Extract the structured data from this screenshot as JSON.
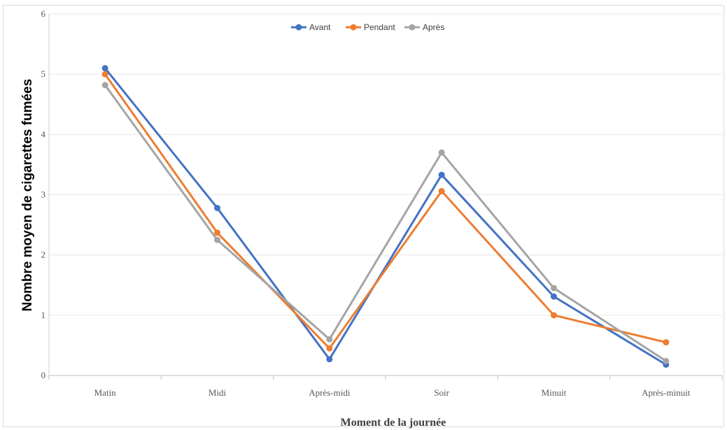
{
  "chart_data": {
    "type": "line",
    "title": "",
    "xlabel": "Moment de la journée",
    "ylabel": "Nombre moyen de cigarettes fumées",
    "categories": [
      "Matin",
      "Midi",
      "Après-midi",
      "Soir",
      "Minuit",
      "Après-minuit"
    ],
    "ylim": [
      0,
      6
    ],
    "yticks": [
      "0",
      "1",
      "2",
      "3",
      "4",
      "5",
      "6"
    ],
    "grid": true,
    "legend_position": "top-center",
    "series": [
      {
        "name": "Avant",
        "color": "#4472C4",
        "values": [
          5.1,
          2.78,
          0.27,
          3.33,
          1.31,
          0.18
        ]
      },
      {
        "name": "Pendant",
        "color": "#ED7D31",
        "values": [
          5.0,
          2.37,
          0.45,
          3.06,
          1.0,
          0.55
        ]
      },
      {
        "name": "Après",
        "color": "#A5A5A5",
        "values": [
          4.82,
          2.25,
          0.6,
          3.7,
          1.45,
          0.24
        ]
      }
    ]
  }
}
